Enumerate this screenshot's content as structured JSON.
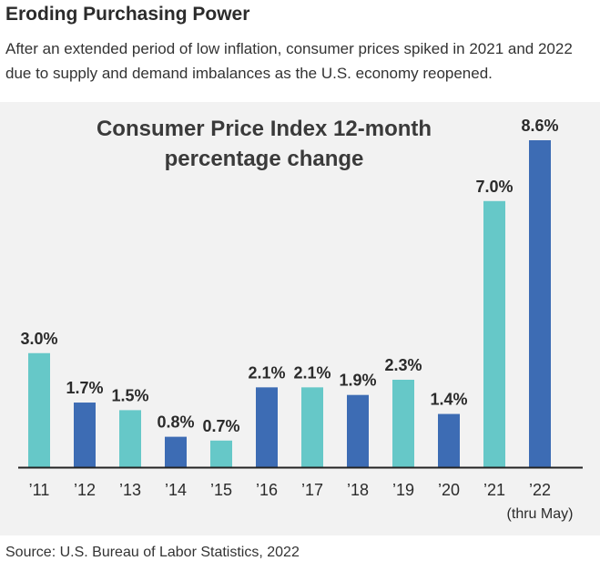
{
  "header": {
    "title": "Eroding Purchasing Power",
    "subtitle": "After an extended period of low inflation, consumer prices spiked in 2021 and 2022 due to supply and demand imbalances as the U.S. economy reopened."
  },
  "footer": {
    "source": "Source: U.S. Bureau of Labor Statistics, 2022"
  },
  "chart_data": {
    "type": "bar",
    "title_lines": [
      "Consumer Price Index 12-month",
      "percentage change"
    ],
    "categories": [
      "’11",
      "’12",
      "’13",
      "’14",
      "’15",
      "’16",
      "’17",
      "’18",
      "’19",
      "’20",
      "’21",
      "’22"
    ],
    "category_note": {
      "category": "’22",
      "text": "(thru May)"
    },
    "values": [
      3.0,
      1.7,
      1.5,
      0.8,
      0.7,
      2.1,
      2.1,
      1.9,
      2.3,
      1.4,
      7.0,
      8.6
    ],
    "value_labels": [
      "3.0%",
      "1.7%",
      "1.5%",
      "0.8%",
      "0.7%",
      "2.1%",
      "2.1%",
      "1.9%",
      "2.3%",
      "1.4%",
      "7.0%",
      "8.6%"
    ],
    "bar_colors": [
      "#66c8c8",
      "#3d6cb4",
      "#66c8c8",
      "#3d6cb4",
      "#66c8c8",
      "#3d6cb4",
      "#66c8c8",
      "#3d6cb4",
      "#66c8c8",
      "#3d6cb4",
      "#66c8c8",
      "#3d6cb4"
    ],
    "colors": {
      "teal": "#66c8c8",
      "blue": "#3d6cb4",
      "panel_background": "#f2f2f2",
      "baseline": "#222222"
    },
    "ylim": [
      0,
      8.6
    ],
    "grid": false,
    "legend": "none"
  }
}
